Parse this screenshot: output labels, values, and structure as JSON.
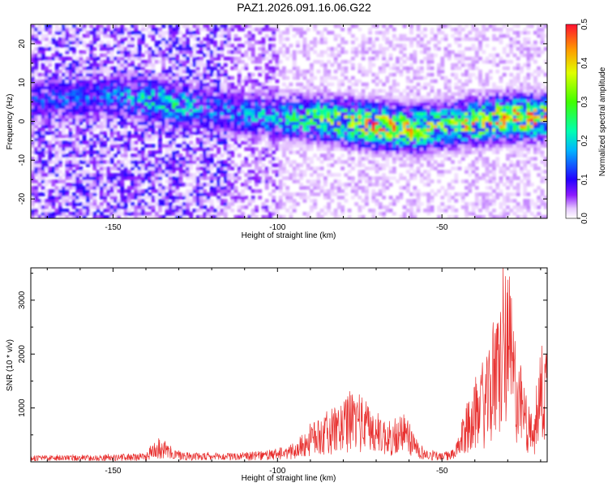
{
  "title": "PAZ1.2026.091.16.06.G22",
  "colors": {
    "line": "#e8302f",
    "frame": "#000000",
    "background": "#ffffff"
  },
  "chart_data": [
    {
      "type": "heatmap",
      "title": "PAZ1.2026.091.16.06.G22",
      "xlabel": "Height of straight line (km)",
      "ylabel": "Frequency (Hz)",
      "xlim": [
        -175,
        -18
      ],
      "ylim": [
        -25,
        25
      ],
      "xticks": [
        -150,
        -100,
        -50
      ],
      "yticks": [
        -20,
        -10,
        0,
        10,
        20
      ],
      "colorbar": {
        "label": "Normalized spectral amplitude",
        "range": [
          0,
          0.5
        ],
        "ticks": [
          0.0,
          0.1,
          0.2,
          0.3,
          0.4,
          0.5
        ]
      },
      "ridge": {
        "description": "main signal band",
        "x": [
          -175,
          -150,
          -135,
          -120,
          -100,
          -90,
          -80,
          -70,
          -60,
          -50,
          -40,
          -30,
          -18
        ],
        "center_hz": [
          5,
          7,
          5,
          3,
          1,
          1,
          0,
          -1,
          -2,
          -1,
          0,
          1,
          1
        ],
        "peak_amplitude": [
          0.12,
          0.15,
          0.25,
          0.15,
          0.2,
          0.3,
          0.35,
          0.45,
          0.4,
          0.3,
          0.4,
          0.45,
          0.4
        ]
      }
    },
    {
      "type": "line",
      "xlabel": "Height of straight line (km)",
      "ylabel": "SNR (10 * v/v)",
      "xlim": [
        -175,
        -18
      ],
      "ylim": [
        0,
        3600
      ],
      "xticks": [
        -150,
        -100,
        -50
      ],
      "yticks": [
        1000,
        2000,
        3000
      ],
      "series": [
        {
          "name": "SNR",
          "x": [
            -175,
            -160,
            -150,
            -140,
            -137,
            -130,
            -120,
            -110,
            -100,
            -95,
            -90,
            -85,
            -80,
            -77,
            -70,
            -65,
            -62,
            -58,
            -55,
            -50,
            -46,
            -42,
            -38,
            -35,
            -32,
            -30,
            -28,
            -25,
            -22,
            -20,
            -18
          ],
          "values": [
            110,
            110,
            120,
            150,
            420,
            180,
            140,
            160,
            200,
            300,
            650,
            850,
            1000,
            1300,
            850,
            650,
            850,
            450,
            200,
            150,
            220,
            1100,
            1500,
            2000,
            2900,
            3500,
            2300,
            1300,
            650,
            2000,
            2200
          ]
        }
      ]
    }
  ]
}
